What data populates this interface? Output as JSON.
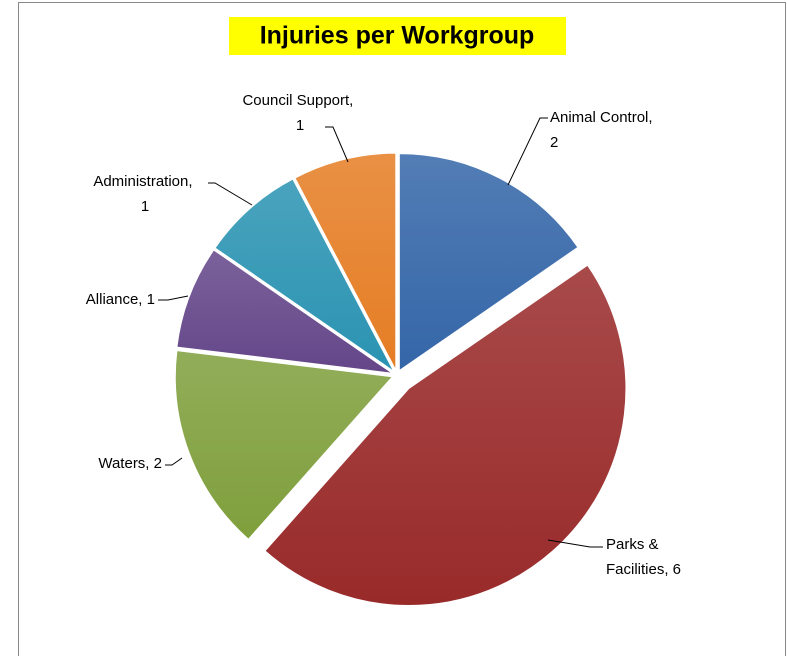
{
  "chart_data": {
    "type": "pie",
    "title": "Injuries per Workgroup",
    "categories": [
      "Animal Control",
      "Parks & Facilities",
      "Waters",
      "Alliance",
      "Administration",
      "Council Support"
    ],
    "values": [
      2,
      6,
      2,
      1,
      1,
      1
    ],
    "value_labels": [
      "Animal Control, 2",
      "Parks & Facilities, 6",
      "Waters, 2",
      "Alliance, 1",
      "Administration, 1",
      "Council Support, 1"
    ],
    "colors": [
      "#3466a8",
      "#992a2a",
      "#7f9f3c",
      "#644689",
      "#2a93b2",
      "#e57d24"
    ],
    "title_background": "#ffff00"
  }
}
